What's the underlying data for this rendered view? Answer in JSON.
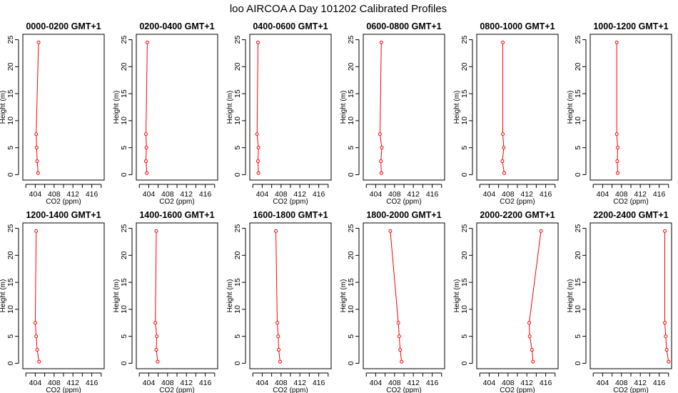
{
  "figure": {
    "title": "loo AIRCOA A  Day 101202  Calibrated Profiles"
  },
  "colors": {
    "profile_line": "#ff0000",
    "profile_marker": "#ff0000",
    "axis": "#000000",
    "background": "#ffffff"
  },
  "chart_data": [
    {
      "type": "line",
      "title": "0000-0200 GMT+1",
      "xlabel": "CO2 (ppm)",
      "ylabel": "Height (m)",
      "xlim": [
        402,
        418
      ],
      "ylim": [
        0,
        25
      ],
      "xticks": [
        404,
        408,
        412,
        416
      ],
      "yticks": [
        0,
        5,
        10,
        15,
        20,
        25
      ],
      "grid": false,
      "series": [
        {
          "x": [
            404.6,
            404.4,
            404.3,
            404.2,
            404.7
          ],
          "y": [
            0.3,
            2.5,
            5.0,
            7.5,
            24.5
          ]
        }
      ]
    },
    {
      "type": "line",
      "title": "0200-0400 GMT+1",
      "xlabel": "CO2 (ppm)",
      "ylabel": "Height (m)",
      "xlim": [
        402,
        418
      ],
      "ylim": [
        0,
        25
      ],
      "xticks": [
        404,
        408,
        412,
        416
      ],
      "yticks": [
        0,
        5,
        10,
        15,
        20,
        25
      ],
      "grid": false,
      "series": [
        {
          "x": [
            403.6,
            403.4,
            403.5,
            403.4,
            403.7
          ],
          "y": [
            0.3,
            2.5,
            5.0,
            7.5,
            24.5
          ]
        }
      ]
    },
    {
      "type": "line",
      "title": "0400-0600 GMT+1",
      "xlabel": "CO2 (ppm)",
      "ylabel": "Height (m)",
      "xlim": [
        402,
        418
      ],
      "ylim": [
        0,
        25
      ],
      "xticks": [
        404,
        408,
        412,
        416
      ],
      "yticks": [
        0,
        5,
        10,
        15,
        20,
        25
      ],
      "grid": false,
      "series": [
        {
          "x": [
            403.2,
            403.1,
            403.2,
            402.9,
            403.1
          ],
          "y": [
            0.3,
            2.5,
            5.0,
            7.5,
            24.5
          ]
        }
      ]
    },
    {
      "type": "line",
      "title": "0600-0800 GMT+1",
      "xlabel": "CO2 (ppm)",
      "ylabel": "Height (m)",
      "xlim": [
        402,
        418
      ],
      "ylim": [
        0,
        25
      ],
      "xticks": [
        404,
        408,
        412,
        416
      ],
      "yticks": [
        0,
        5,
        10,
        15,
        20,
        25
      ],
      "grid": false,
      "series": [
        {
          "x": [
            405.2,
            405.1,
            405.3,
            404.9,
            405.2
          ],
          "y": [
            0.3,
            2.5,
            5.0,
            7.5,
            24.5
          ]
        }
      ]
    },
    {
      "type": "line",
      "title": "0800-1000 GMT+1",
      "xlabel": "CO2 (ppm)",
      "ylabel": "Height (m)",
      "xlim": [
        402,
        418
      ],
      "ylim": [
        0,
        25
      ],
      "xticks": [
        404,
        408,
        412,
        416
      ],
      "yticks": [
        0,
        5,
        10,
        15,
        20,
        25
      ],
      "grid": false,
      "series": [
        {
          "x": [
            407.2,
            406.8,
            407.1,
            406.9,
            406.9
          ],
          "y": [
            0.3,
            2.5,
            5.0,
            7.5,
            24.5
          ]
        }
      ]
    },
    {
      "type": "line",
      "title": "1000-1200 GMT+1",
      "xlabel": "CO2 (ppm)",
      "ylabel": "Height (m)",
      "xlim": [
        402,
        418
      ],
      "ylim": [
        0,
        25
      ],
      "xticks": [
        404,
        408,
        412,
        416
      ],
      "yticks": [
        0,
        5,
        10,
        15,
        20,
        25
      ],
      "grid": false,
      "series": [
        {
          "x": [
            407.2,
            407.1,
            407.2,
            407.0,
            407.0
          ],
          "y": [
            0.3,
            2.5,
            5.0,
            7.5,
            24.5
          ]
        }
      ]
    },
    {
      "type": "line",
      "title": "1200-1400 GMT+1",
      "xlabel": "CO2 (ppm)",
      "ylabel": "Height (m)",
      "xlim": [
        402,
        418
      ],
      "ylim": [
        0,
        25
      ],
      "xticks": [
        404,
        408,
        412,
        416
      ],
      "yticks": [
        0,
        5,
        10,
        15,
        20,
        25
      ],
      "grid": false,
      "series": [
        {
          "x": [
            404.8,
            404.4,
            404.2,
            404.0,
            404.2
          ],
          "y": [
            0.3,
            2.5,
            5.0,
            7.5,
            24.5
          ]
        }
      ]
    },
    {
      "type": "line",
      "title": "1400-1600 GMT+1",
      "xlabel": "CO2 (ppm)",
      "ylabel": "Height (m)",
      "xlim": [
        402,
        418
      ],
      "ylim": [
        0,
        25
      ],
      "xticks": [
        404,
        408,
        412,
        416
      ],
      "yticks": [
        0,
        5,
        10,
        15,
        20,
        25
      ],
      "grid": false,
      "series": [
        {
          "x": [
            405.9,
            405.6,
            405.7,
            405.4,
            405.6
          ],
          "y": [
            0.3,
            2.5,
            5.0,
            7.5,
            24.5
          ]
        }
      ]
    },
    {
      "type": "line",
      "title": "1600-1800 GMT+1",
      "xlabel": "CO2 (ppm)",
      "ylabel": "Height (m)",
      "xlim": [
        402,
        418
      ],
      "ylim": [
        0,
        25
      ],
      "xticks": [
        404,
        408,
        412,
        416
      ],
      "yticks": [
        0,
        5,
        10,
        15,
        20,
        25
      ],
      "grid": false,
      "series": [
        {
          "x": [
            407.8,
            407.5,
            407.4,
            407.2,
            406.9
          ],
          "y": [
            0.3,
            2.5,
            5.0,
            7.5,
            24.5
          ]
        }
      ]
    },
    {
      "type": "line",
      "title": "1800-2000 GMT+1",
      "xlabel": "CO2 (ppm)",
      "ylabel": "Height (m)",
      "xlim": [
        402,
        418
      ],
      "ylim": [
        0,
        25
      ],
      "xticks": [
        404,
        408,
        412,
        416
      ],
      "yticks": [
        0,
        5,
        10,
        15,
        20,
        25
      ],
      "grid": false,
      "series": [
        {
          "x": [
            409.5,
            409.2,
            409.0,
            408.8,
            407.1
          ],
          "y": [
            0.3,
            2.5,
            5.0,
            7.5,
            24.5
          ]
        }
      ]
    },
    {
      "type": "line",
      "title": "2000-2200 GMT+1",
      "xlabel": "CO2 (ppm)",
      "ylabel": "Height (m)",
      "xlim": [
        402,
        418
      ],
      "ylim": [
        0,
        25
      ],
      "xticks": [
        404,
        408,
        412,
        416
      ],
      "yticks": [
        0,
        5,
        10,
        15,
        20,
        25
      ],
      "grid": false,
      "series": [
        {
          "x": [
            413.3,
            413.1,
            412.6,
            412.5,
            415.0
          ],
          "y": [
            0.3,
            2.5,
            5.0,
            7.5,
            24.5
          ]
        }
      ]
    },
    {
      "type": "line",
      "title": "2200-2400 GMT+1",
      "xlabel": "CO2 (ppm)",
      "ylabel": "Height (m)",
      "xlim": [
        402,
        418
      ],
      "ylim": [
        0,
        25
      ],
      "xticks": [
        404,
        408,
        412,
        416
      ],
      "yticks": [
        0,
        5,
        10,
        15,
        20,
        25
      ],
      "grid": false,
      "series": [
        {
          "x": [
            418.0,
            417.6,
            417.4,
            417.2,
            417.2
          ],
          "y": [
            0.3,
            2.5,
            5.0,
            7.5,
            24.5
          ]
        }
      ]
    }
  ]
}
